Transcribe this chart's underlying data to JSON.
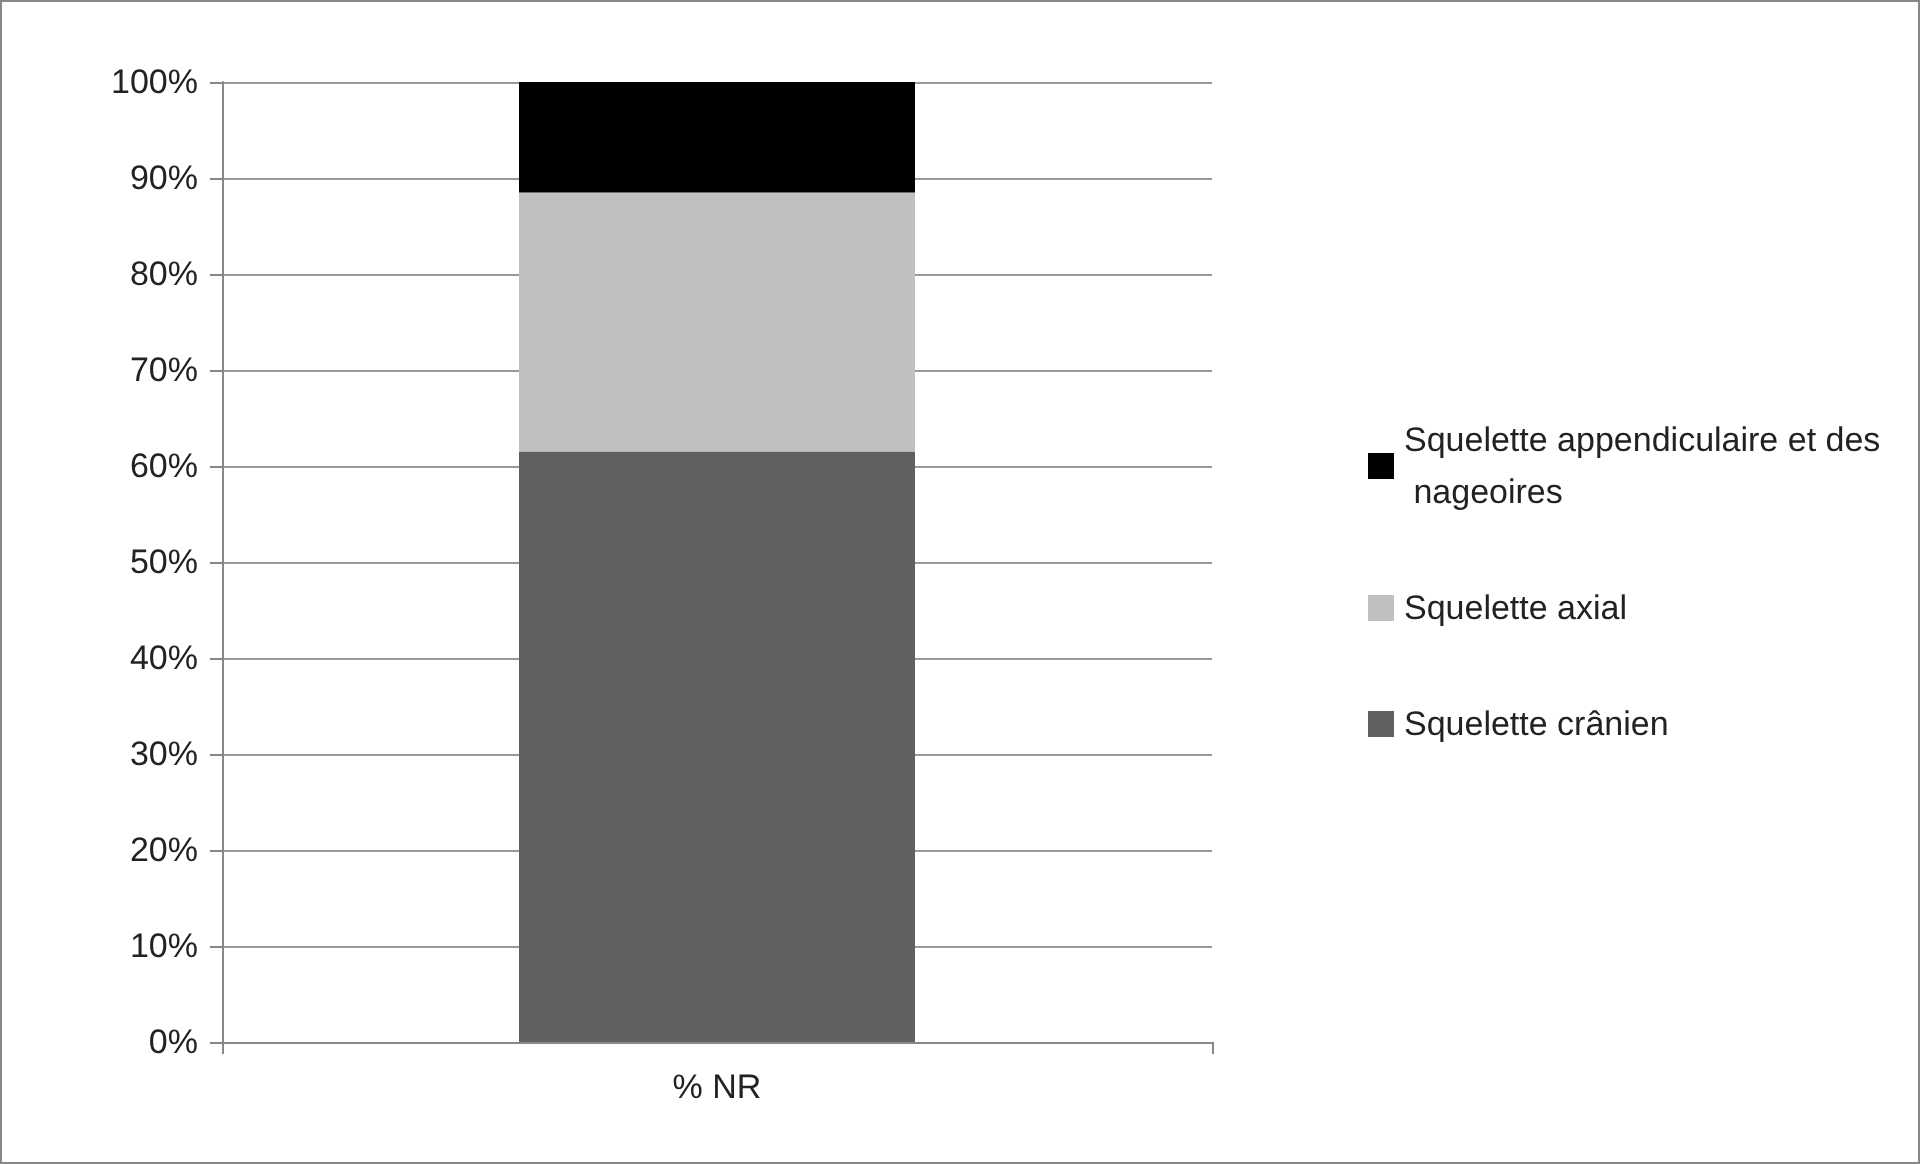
{
  "chart_data": {
    "type": "bar",
    "stacked": true,
    "categories": [
      "% NR"
    ],
    "series": [
      {
        "name": "Squelette crânien",
        "color": "#606060",
        "values": [
          61.5
        ]
      },
      {
        "name": "Squelette axial",
        "color": "#c0c0c0",
        "values": [
          27
        ]
      },
      {
        "name": "Squelette appendiculaire et des nageoires",
        "color": "#000000",
        "values": [
          11.5
        ]
      }
    ],
    "ylim": [
      0,
      100
    ],
    "yticks": [
      {
        "value": 0,
        "label": "0%"
      },
      {
        "value": 10,
        "label": "10%"
      },
      {
        "value": 20,
        "label": "20%"
      },
      {
        "value": 30,
        "label": "30%"
      },
      {
        "value": 40,
        "label": "40%"
      },
      {
        "value": 50,
        "label": "50%"
      },
      {
        "value": 60,
        "label": "60%"
      },
      {
        "value": 70,
        "label": "70%"
      },
      {
        "value": 80,
        "label": "80%"
      },
      {
        "value": 90,
        "label": "90%"
      },
      {
        "value": 100,
        "label": "100%"
      }
    ],
    "grid": "y",
    "legend": "right"
  }
}
